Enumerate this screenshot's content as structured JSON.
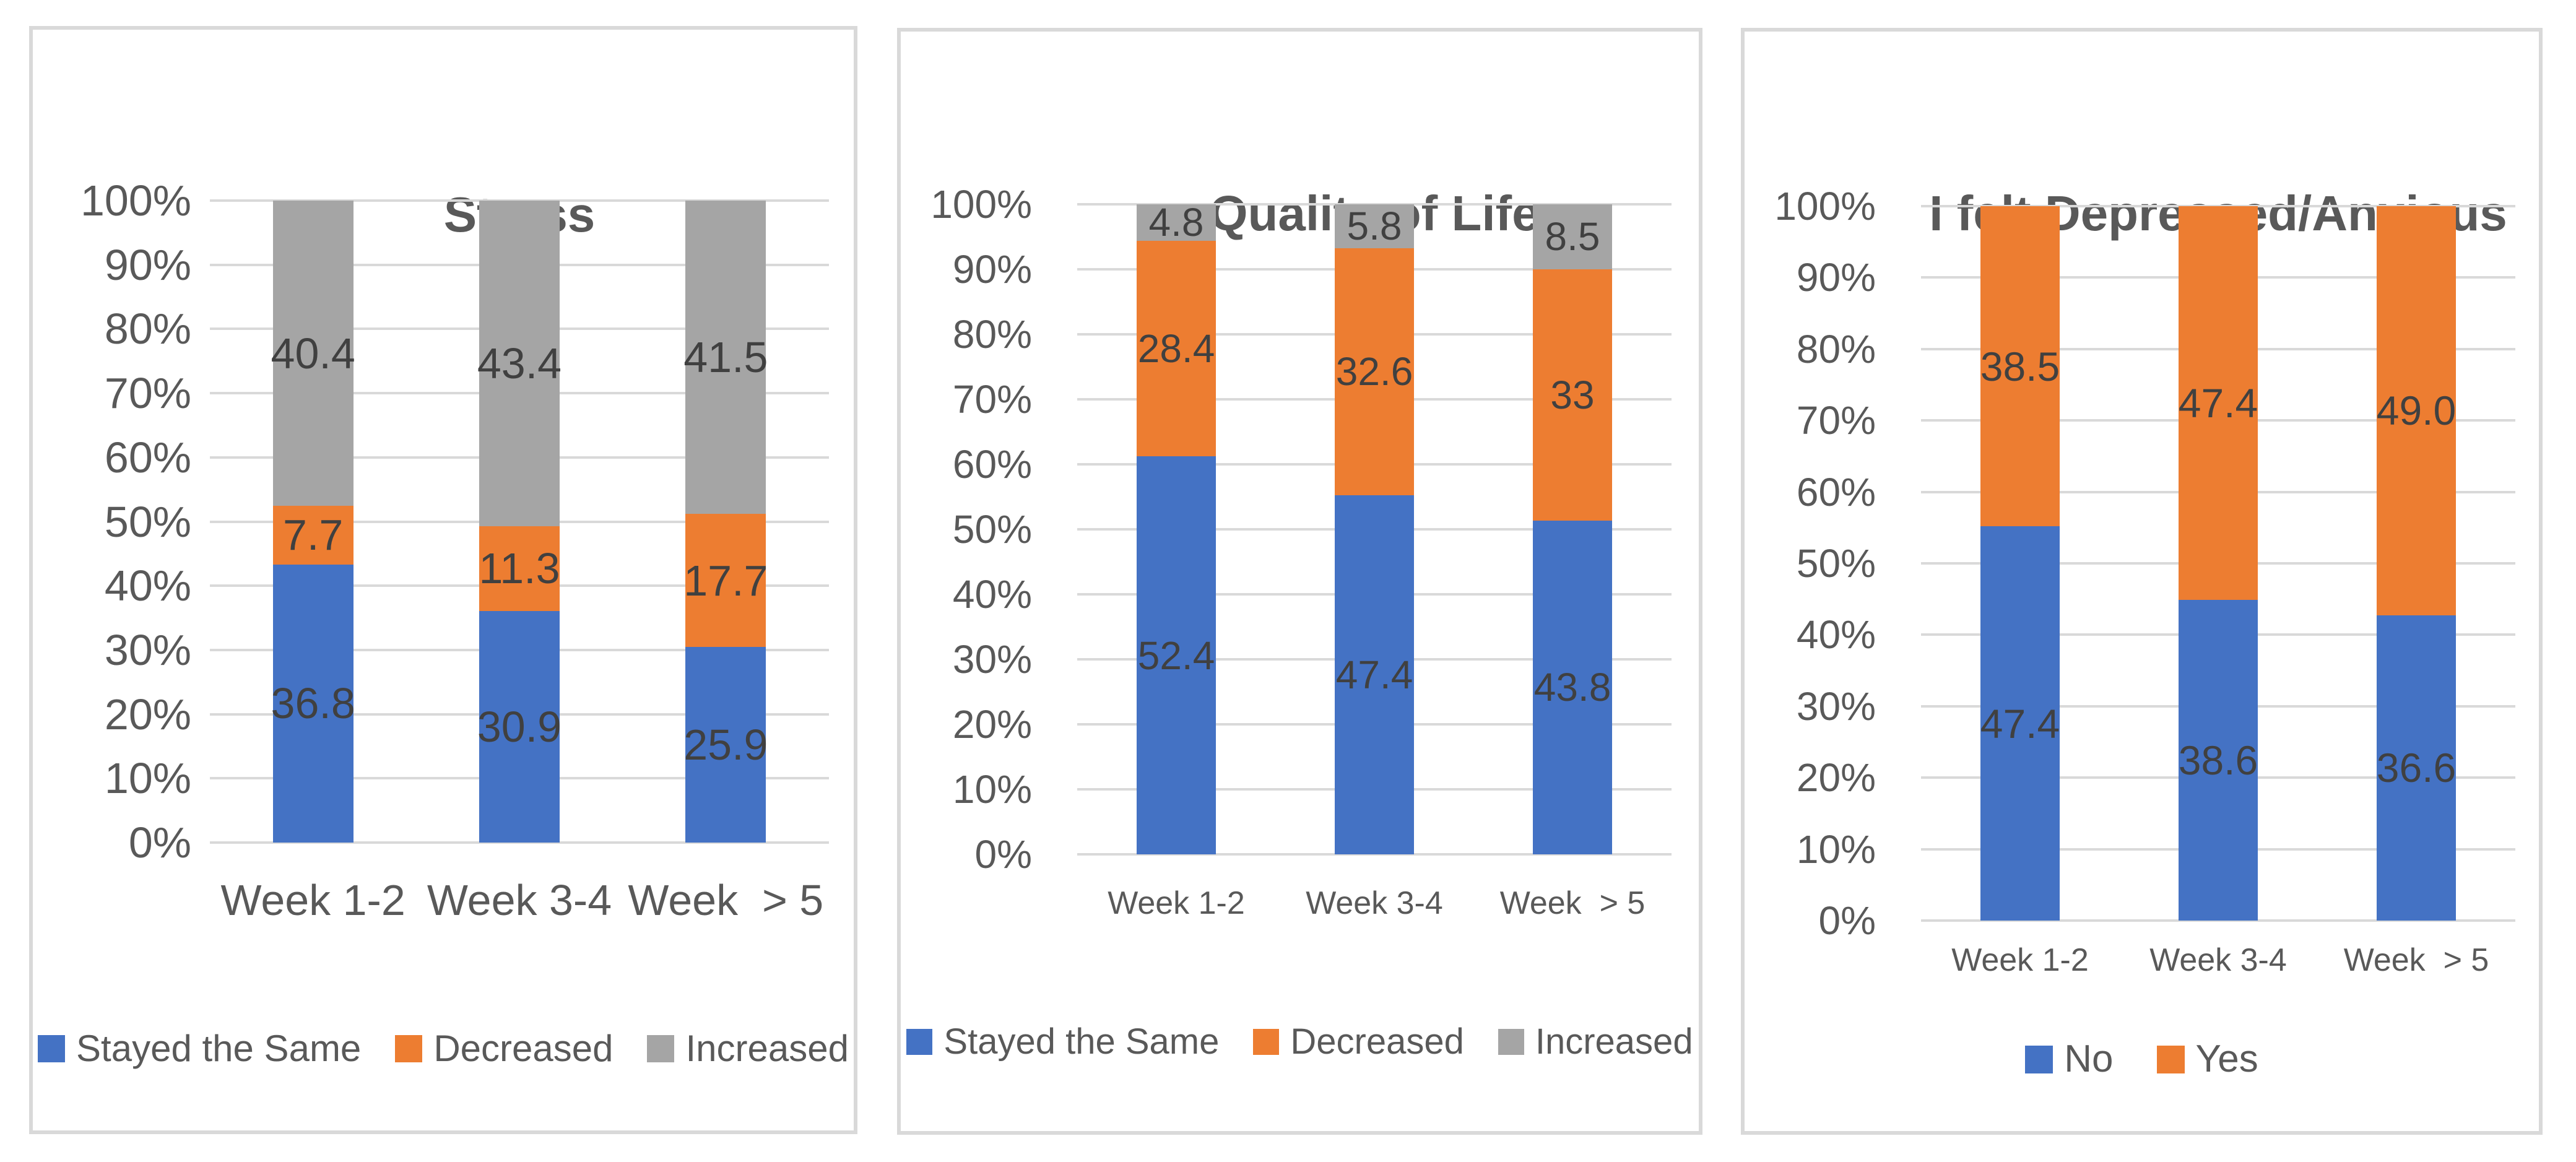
{
  "page": {
    "background": "#ffffff"
  },
  "colors": {
    "blue": "#4472C4",
    "orange": "#ED7D31",
    "gray": "#A5A5A5",
    "gridline": "#D9D9D9",
    "panel_border": "#D9D9D9",
    "text": "#595959",
    "value_label": "#404040"
  },
  "chart_data": [
    {
      "type": "bar",
      "subtype": "stacked-100-percent",
      "title": "Stress",
      "categories": [
        "Week 1-2",
        "Week 3-4",
        "Week  > 5"
      ],
      "y_ticks": [
        "100%",
        "90%",
        "80%",
        "70%",
        "60%",
        "50%",
        "40%",
        "30%",
        "20%",
        "10%",
        "0%"
      ],
      "ylim": [
        0,
        100
      ],
      "unit": "%",
      "grid": true,
      "legend_position": "bottom",
      "series": [
        {
          "name": "Stayed the Same",
          "color": "blue",
          "values": [
            36.8,
            30.9,
            25.9
          ],
          "labels": [
            "36.8",
            "30.9",
            "25.9"
          ]
        },
        {
          "name": "Decreased",
          "color": "orange",
          "values": [
            7.7,
            11.3,
            17.7
          ],
          "labels": [
            "7.7",
            "11.3",
            "17.7"
          ]
        },
        {
          "name": "Increased",
          "color": "gray",
          "values": [
            40.4,
            43.4,
            41.5
          ],
          "labels": [
            "40.4",
            "43.4",
            "41.5"
          ]
        }
      ]
    },
    {
      "type": "bar",
      "subtype": "stacked-100-percent",
      "title": "Quality of Life",
      "categories": [
        "Week 1-2",
        "Week 3-4",
        "Week  > 5"
      ],
      "y_ticks": [
        "100%",
        "90%",
        "80%",
        "70%",
        "60%",
        "50%",
        "40%",
        "30%",
        "20%",
        "10%",
        "0%"
      ],
      "ylim": [
        0,
        100
      ],
      "unit": "%",
      "grid": true,
      "legend_position": "bottom",
      "series": [
        {
          "name": "Stayed the Same",
          "color": "blue",
          "values": [
            52.4,
            47.4,
            43.8
          ],
          "labels": [
            "52.4",
            "47.4",
            "43.8"
          ]
        },
        {
          "name": "Decreased",
          "color": "orange",
          "values": [
            28.4,
            32.6,
            33
          ],
          "labels": [
            "28.4",
            "32.6",
            "33"
          ]
        },
        {
          "name": "Increased",
          "color": "gray",
          "values": [
            4.8,
            5.8,
            8.5
          ],
          "labels": [
            "4.8",
            "5.8",
            "8.5"
          ]
        }
      ]
    },
    {
      "type": "bar",
      "subtype": "stacked-100-percent",
      "title": "I felt Depressed/Anxious",
      "categories": [
        "Week 1-2",
        "Week 3-4",
        "Week  > 5"
      ],
      "y_ticks": [
        "100%",
        "90%",
        "80%",
        "70%",
        "60%",
        "50%",
        "40%",
        "30%",
        "20%",
        "10%",
        "0%"
      ],
      "ylim": [
        0,
        100
      ],
      "unit": "%",
      "grid": true,
      "legend_position": "bottom",
      "series": [
        {
          "name": "No",
          "color": "blue",
          "values": [
            47.4,
            38.6,
            36.6
          ],
          "labels": [
            "47.4",
            "38.6",
            "36.6"
          ]
        },
        {
          "name": "Yes",
          "color": "orange",
          "values": [
            38.5,
            47.4,
            49.0
          ],
          "labels": [
            "38.5",
            "47.4",
            "49.0"
          ]
        }
      ]
    }
  ]
}
